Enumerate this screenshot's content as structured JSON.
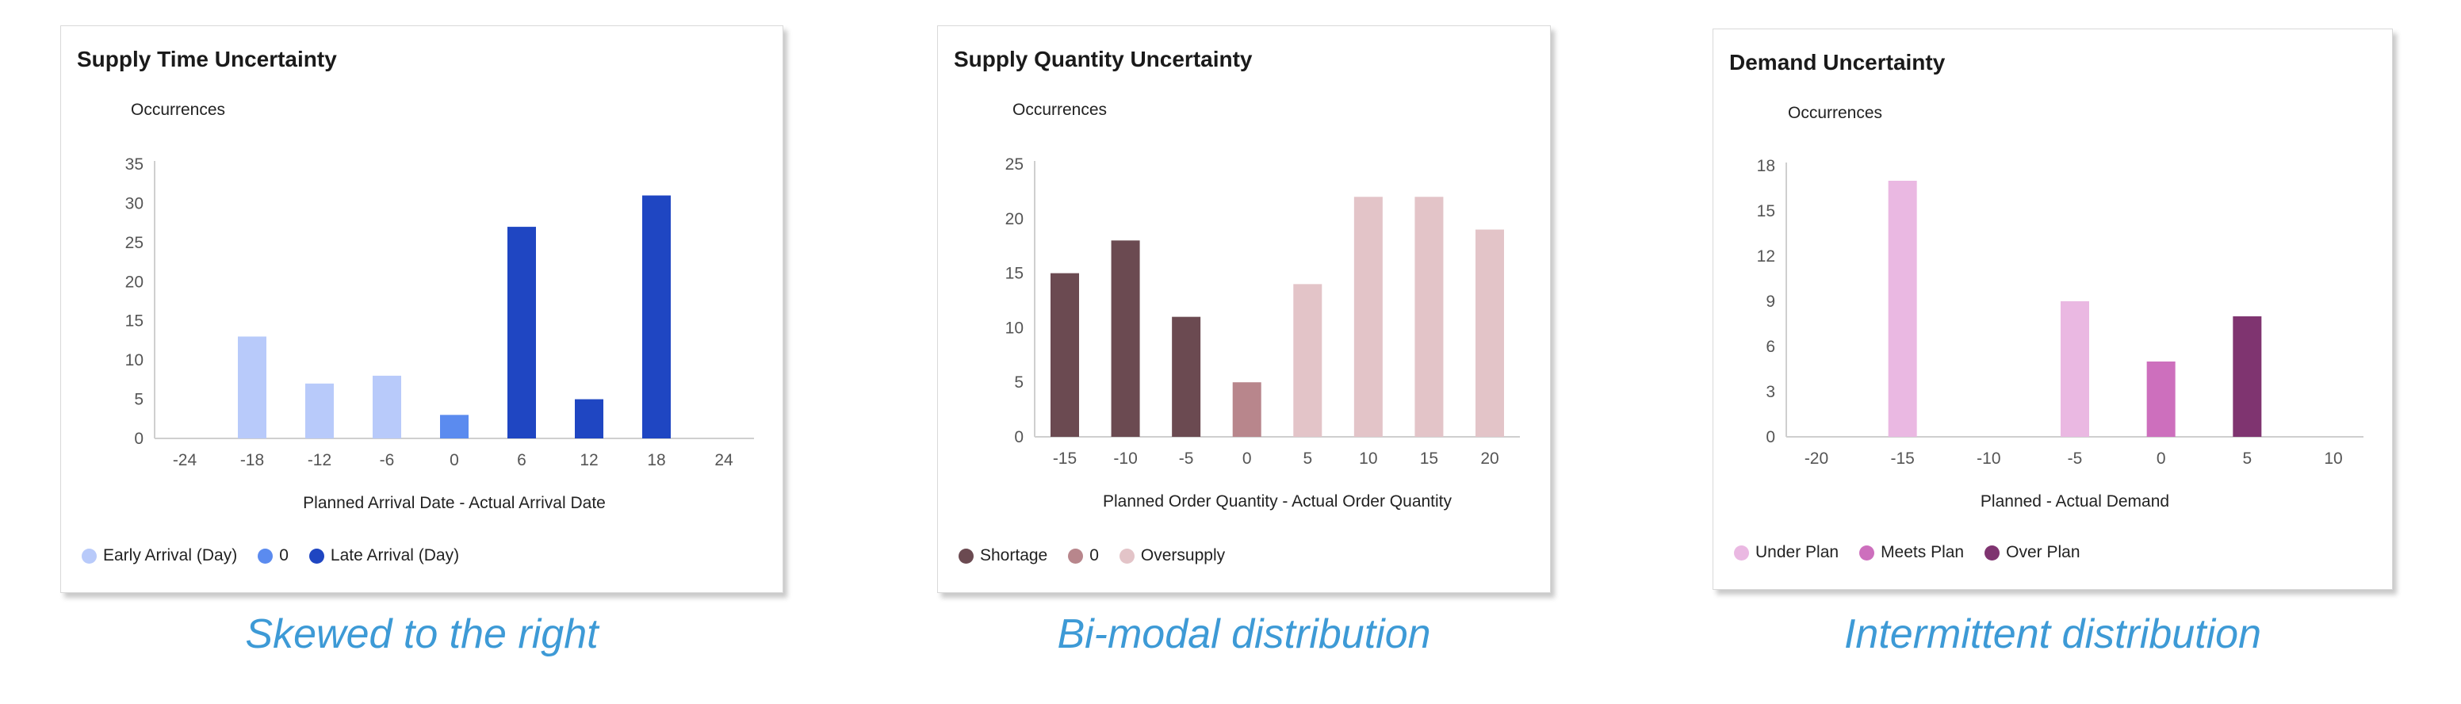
{
  "charts": [
    {
      "card_title": "Supply Time Uncertainty",
      "ylabel": "Occurrences",
      "xlabel": "Planned Arrival Date - Actual Arrival Date",
      "caption": "Skewed to the right",
      "legend": [
        {
          "label": "Early Arrival (Day)",
          "color": "#b8cafa"
        },
        {
          "label": "0",
          "color": "#5b8bef"
        },
        {
          "label": "Late Arrival (Day)",
          "color": "#1f46c2"
        }
      ]
    },
    {
      "card_title": "Supply Quantity Uncertainty",
      "ylabel": "Occurrences",
      "xlabel": "Planned Order Quantity - Actual Order Quantity",
      "caption": "Bi-modal distribution",
      "legend": [
        {
          "label": "Shortage",
          "color": "#6b4a51"
        },
        {
          "label": "0",
          "color": "#b8868c"
        },
        {
          "label": "Oversupply",
          "color": "#e3c4c8"
        }
      ]
    },
    {
      "card_title": "Demand Uncertainty",
      "ylabel": "Occurrences",
      "xlabel": "Planned - Actual Demand",
      "caption": "Intermittent distribution",
      "legend": [
        {
          "label": "Under Plan",
          "color": "#eab8e2"
        },
        {
          "label": "Meets Plan",
          "color": "#cd6fbd"
        },
        {
          "label": "Over Plan",
          "color": "#7f3470"
        }
      ]
    }
  ],
  "chart_data": [
    {
      "type": "bar",
      "title": "Supply Time Uncertainty",
      "xlabel": "Planned Arrival Date - Actual Arrival Date",
      "ylabel": "Occurrences",
      "x_ticks": [
        -24,
        -18,
        -12,
        -6,
        0,
        6,
        12,
        18,
        24
      ],
      "y_ticks": [
        0,
        5,
        10,
        15,
        20,
        25,
        30,
        35
      ],
      "xlim": [
        -24,
        24
      ],
      "ylim": [
        0,
        35
      ],
      "legend_position": "bottom-left",
      "series": [
        {
          "name": "Early Arrival (Day)",
          "color": "#b8cafa",
          "x": [
            -18,
            -12,
            -6
          ],
          "values": [
            13,
            7,
            8
          ]
        },
        {
          "name": "0",
          "color": "#5b8bef",
          "x": [
            0
          ],
          "values": [
            3
          ]
        },
        {
          "name": "Late Arrival (Day)",
          "color": "#1f46c2",
          "x": [
            6,
            12,
            18
          ],
          "values": [
            27,
            5,
            31
          ]
        }
      ]
    },
    {
      "type": "bar",
      "title": "Supply Quantity Uncertainty",
      "xlabel": "Planned Order Quantity - Actual Order Quantity",
      "ylabel": "Occurrences",
      "x_ticks": [
        -15,
        -10,
        -5,
        0,
        5,
        10,
        15,
        20
      ],
      "y_ticks": [
        0,
        5,
        10,
        15,
        20,
        25
      ],
      "xlim": [
        -15,
        20
      ],
      "ylim": [
        0,
        25
      ],
      "legend_position": "bottom-left",
      "series": [
        {
          "name": "Shortage",
          "color": "#6b4a51",
          "x": [
            -15,
            -10,
            -5
          ],
          "values": [
            15,
            18,
            11
          ]
        },
        {
          "name": "0",
          "color": "#b8868c",
          "x": [
            0
          ],
          "values": [
            5
          ]
        },
        {
          "name": "Oversupply",
          "color": "#e3c4c8",
          "x": [
            5,
            10,
            15,
            20
          ],
          "values": [
            14,
            22,
            22,
            19
          ]
        }
      ]
    },
    {
      "type": "bar",
      "title": "Demand Uncertainty",
      "xlabel": "Planned - Actual Demand",
      "ylabel": "Occurrences",
      "x_ticks": [
        -20,
        -15,
        -10,
        -5,
        0,
        5,
        10
      ],
      "y_ticks": [
        0,
        3,
        6,
        9,
        12,
        15,
        18
      ],
      "xlim": [
        -20,
        10
      ],
      "ylim": [
        0,
        18
      ],
      "legend_position": "bottom-left",
      "series": [
        {
          "name": "Under Plan",
          "color": "#eab8e2",
          "x": [
            -15,
            -5
          ],
          "values": [
            17,
            9
          ]
        },
        {
          "name": "Meets Plan",
          "color": "#cd6fbd",
          "x": [
            0
          ],
          "values": [
            5
          ]
        },
        {
          "name": "Over Plan",
          "color": "#7f3470",
          "x": [
            5
          ],
          "values": [
            8
          ]
        }
      ]
    }
  ]
}
